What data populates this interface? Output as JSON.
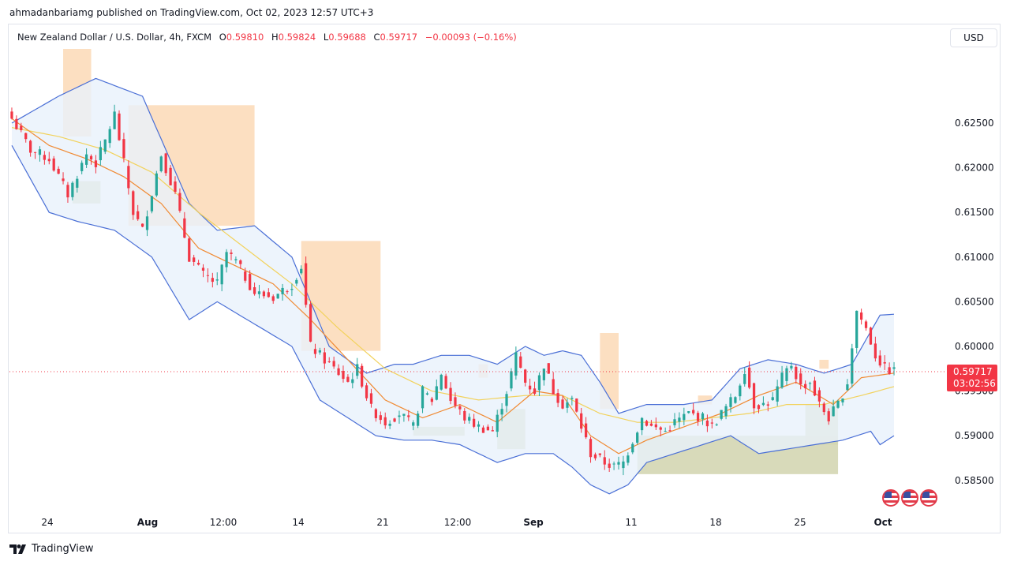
{
  "attribution": "ahmadanbariamg published on TradingView.com, Oct 02, 2023 12:57 UTC+3",
  "legend": {
    "symbol": "New Zealand Dollar / U.S. Dollar, 4h, FXCM",
    "open_label": "O",
    "open": "0.59810",
    "high_label": "H",
    "high": "0.59824",
    "low_label": "L",
    "low": "0.59688",
    "close_label": "C",
    "close": "0.59717",
    "change": "−0.00093 (−0.16%)"
  },
  "currency": "USD",
  "footer": {
    "brand": "TradingView",
    "logo_icon": "tradingview-logo-icon"
  },
  "events_icon": "us-flag-icon",
  "colors": {
    "up": "#26a69a",
    "down": "#f23645",
    "band": "#4a6fd6",
    "band_fill": "#e8f1fb",
    "ema_fast": "#f08a33",
    "ema_slow": "#f2d25c",
    "supply_zone": "#fcd9b6",
    "demand_zone": "#d4d6b2",
    "price_tag": "#f23645"
  },
  "chart_data": {
    "type": "candlestick",
    "y_axis": {
      "ticks": [
        "0.62500",
        "0.62000",
        "0.61500",
        "0.61000",
        "0.60500",
        "0.60000",
        "0.59500",
        "0.59000",
        "0.58500"
      ],
      "range": [
        0.5818,
        0.6333
      ]
    },
    "x_axis": {
      "labels": [
        "24",
        "Aug",
        "12:00",
        "14",
        "21",
        "12:00",
        "Sep",
        "11",
        "18",
        "25",
        "Oct"
      ],
      "bold": [
        "Aug",
        "Sep",
        "Oct"
      ]
    },
    "current_price": {
      "value": "0.59717",
      "countdown": "03:02:56"
    },
    "close_path": [
      [
        0,
        0.6255
      ],
      [
        4,
        0.622
      ],
      [
        8,
        0.621
      ],
      [
        12,
        0.617
      ],
      [
        16,
        0.6215
      ],
      [
        18,
        0.6205
      ],
      [
        20,
        0.623
      ],
      [
        22,
        0.626
      ],
      [
        26,
        0.615
      ],
      [
        28,
        0.613
      ],
      [
        32,
        0.6215
      ],
      [
        35,
        0.617
      ],
      [
        38,
        0.61
      ],
      [
        41,
        0.608
      ],
      [
        44,
        0.607
      ],
      [
        46,
        0.6105
      ],
      [
        48,
        0.6095
      ],
      [
        52,
        0.606
      ],
      [
        56,
        0.6055
      ],
      [
        60,
        0.607
      ],
      [
        62,
        0.609
      ],
      [
        64,
        0.6
      ],
      [
        68,
        0.598
      ],
      [
        72,
        0.596
      ],
      [
        74,
        0.5975
      ],
      [
        77,
        0.593
      ],
      [
        80,
        0.5915
      ],
      [
        83,
        0.5925
      ],
      [
        86,
        0.591
      ],
      [
        88,
        0.595
      ],
      [
        90,
        0.594
      ],
      [
        92,
        0.597
      ],
      [
        94,
        0.594
      ],
      [
        97,
        0.592
      ],
      [
        100,
        0.591
      ],
      [
        103,
        0.5905
      ],
      [
        106,
        0.595
      ],
      [
        108,
        0.599
      ],
      [
        110,
        0.596
      ],
      [
        112,
        0.595
      ],
      [
        114,
        0.598
      ],
      [
        116,
        0.595
      ],
      [
        118,
        0.5935
      ],
      [
        120,
        0.594
      ],
      [
        122,
        0.591
      ],
      [
        124,
        0.588
      ],
      [
        127,
        0.587
      ],
      [
        129,
        0.5865
      ],
      [
        131,
        0.587
      ],
      [
        133,
        0.5895
      ],
      [
        135,
        0.592
      ],
      [
        137,
        0.591
      ],
      [
        140,
        0.5905
      ],
      [
        142,
        0.5915
      ],
      [
        145,
        0.5925
      ],
      [
        148,
        0.592
      ],
      [
        150,
        0.591
      ],
      [
        152,
        0.5925
      ],
      [
        155,
        0.5945
      ],
      [
        157,
        0.5975
      ],
      [
        159,
        0.5935
      ],
      [
        161,
        0.5935
      ],
      [
        163,
        0.594
      ],
      [
        165,
        0.5965
      ],
      [
        167,
        0.598
      ],
      [
        169,
        0.5955
      ],
      [
        171,
        0.596
      ],
      [
        173,
        0.5935
      ],
      [
        175,
        0.592
      ],
      [
        177,
        0.5935
      ],
      [
        179,
        0.596
      ],
      [
        181,
        0.604
      ],
      [
        183,
        0.602
      ],
      [
        185,
        0.599
      ],
      [
        187,
        0.5975
      ],
      [
        189,
        0.5972
      ]
    ],
    "bands": {
      "upper": [
        [
          0,
          0.625
        ],
        [
          10,
          0.628
        ],
        [
          18,
          0.63
        ],
        [
          28,
          0.628
        ],
        [
          38,
          0.616
        ],
        [
          44,
          0.613
        ],
        [
          52,
          0.6135
        ],
        [
          60,
          0.61
        ],
        [
          68,
          0.6
        ],
        [
          76,
          0.597
        ],
        [
          82,
          0.598
        ],
        [
          86,
          0.598
        ],
        [
          92,
          0.599
        ],
        [
          98,
          0.599
        ],
        [
          104,
          0.598
        ],
        [
          110,
          0.6
        ],
        [
          114,
          0.599
        ],
        [
          118,
          0.5995
        ],
        [
          122,
          0.599
        ],
        [
          126,
          0.596
        ],
        [
          130,
          0.5925
        ],
        [
          136,
          0.5935
        ],
        [
          144,
          0.5935
        ],
        [
          150,
          0.594
        ],
        [
          156,
          0.5975
        ],
        [
          162,
          0.5985
        ],
        [
          168,
          0.598
        ],
        [
          174,
          0.597
        ],
        [
          180,
          0.598
        ],
        [
          186,
          0.6035
        ],
        [
          189,
          0.6036
        ]
      ],
      "lower": [
        [
          0,
          0.6225
        ],
        [
          8,
          0.615
        ],
        [
          14,
          0.614
        ],
        [
          22,
          0.613
        ],
        [
          30,
          0.61
        ],
        [
          38,
          0.603
        ],
        [
          44,
          0.605
        ],
        [
          52,
          0.6025
        ],
        [
          60,
          0.6
        ],
        [
          66,
          0.594
        ],
        [
          72,
          0.592
        ],
        [
          78,
          0.59
        ],
        [
          84,
          0.5895
        ],
        [
          90,
          0.5895
        ],
        [
          96,
          0.589
        ],
        [
          100,
          0.588
        ],
        [
          104,
          0.587
        ],
        [
          110,
          0.588
        ],
        [
          116,
          0.588
        ],
        [
          120,
          0.5865
        ],
        [
          124,
          0.5845
        ],
        [
          128,
          0.5835
        ],
        [
          132,
          0.5845
        ],
        [
          136,
          0.587
        ],
        [
          142,
          0.588
        ],
        [
          148,
          0.589
        ],
        [
          154,
          0.59
        ],
        [
          160,
          0.588
        ],
        [
          166,
          0.5885
        ],
        [
          172,
          0.589
        ],
        [
          178,
          0.5895
        ],
        [
          184,
          0.5905
        ],
        [
          186,
          0.589
        ],
        [
          189,
          0.59
        ]
      ]
    },
    "ema_fast": [
      [
        0,
        0.6255
      ],
      [
        8,
        0.6225
      ],
      [
        16,
        0.621
      ],
      [
        24,
        0.619
      ],
      [
        32,
        0.616
      ],
      [
        40,
        0.611
      ],
      [
        48,
        0.609
      ],
      [
        56,
        0.607
      ],
      [
        64,
        0.603
      ],
      [
        72,
        0.5985
      ],
      [
        80,
        0.594
      ],
      [
        88,
        0.592
      ],
      [
        96,
        0.5935
      ],
      [
        104,
        0.5915
      ],
      [
        112,
        0.595
      ],
      [
        118,
        0.5945
      ],
      [
        124,
        0.59
      ],
      [
        130,
        0.588
      ],
      [
        136,
        0.5895
      ],
      [
        144,
        0.591
      ],
      [
        152,
        0.5925
      ],
      [
        160,
        0.5945
      ],
      [
        168,
        0.596
      ],
      [
        176,
        0.5935
      ],
      [
        182,
        0.5965
      ],
      [
        189,
        0.597
      ]
    ],
    "ema_slow": [
      [
        0,
        0.6245
      ],
      [
        10,
        0.6235
      ],
      [
        20,
        0.622
      ],
      [
        30,
        0.6195
      ],
      [
        40,
        0.615
      ],
      [
        50,
        0.611
      ],
      [
        60,
        0.607
      ],
      [
        70,
        0.602
      ],
      [
        80,
        0.5975
      ],
      [
        90,
        0.595
      ],
      [
        100,
        0.594
      ],
      [
        110,
        0.5945
      ],
      [
        118,
        0.5945
      ],
      [
        126,
        0.5925
      ],
      [
        134,
        0.5915
      ],
      [
        142,
        0.5915
      ],
      [
        150,
        0.592
      ],
      [
        158,
        0.5925
      ],
      [
        166,
        0.5935
      ],
      [
        174,
        0.5935
      ],
      [
        182,
        0.5945
      ],
      [
        189,
        0.5955
      ]
    ],
    "supply_zones": [
      {
        "x0": 11,
        "x1": 17,
        "ytop": 0.6333,
        "ybot": 0.6235
      },
      {
        "x0": 25,
        "x1": 52,
        "ytop": 0.627,
        "ybot": 0.6135
      },
      {
        "x0": 62,
        "x1": 79,
        "ytop": 0.6118,
        "ybot": 0.5995
      },
      {
        "x0": 100,
        "x1": 102,
        "ytop": 0.598,
        "ybot": 0.5965
      },
      {
        "x0": 126,
        "x1": 130,
        "ytop": 0.6015,
        "ybot": 0.593
      },
      {
        "x0": 147,
        "x1": 150,
        "ytop": 0.5945,
        "ybot": 0.5935
      },
      {
        "x0": 173,
        "x1": 175,
        "ytop": 0.5985,
        "ybot": 0.5975
      }
    ],
    "demand_zones": [
      {
        "x0": 13,
        "x1": 19,
        "ytop": 0.6185,
        "ybot": 0.616
      },
      {
        "x0": 86,
        "x1": 97,
        "ytop": 0.591,
        "ybot": 0.59
      },
      {
        "x0": 104,
        "x1": 110,
        "ytop": 0.593,
        "ybot": 0.5885
      },
      {
        "x0": 134,
        "x1": 177,
        "ytop": 0.59,
        "ybot": 0.5857
      },
      {
        "x0": 170,
        "x1": 177,
        "ytop": 0.5935,
        "ybot": 0.589
      }
    ]
  }
}
